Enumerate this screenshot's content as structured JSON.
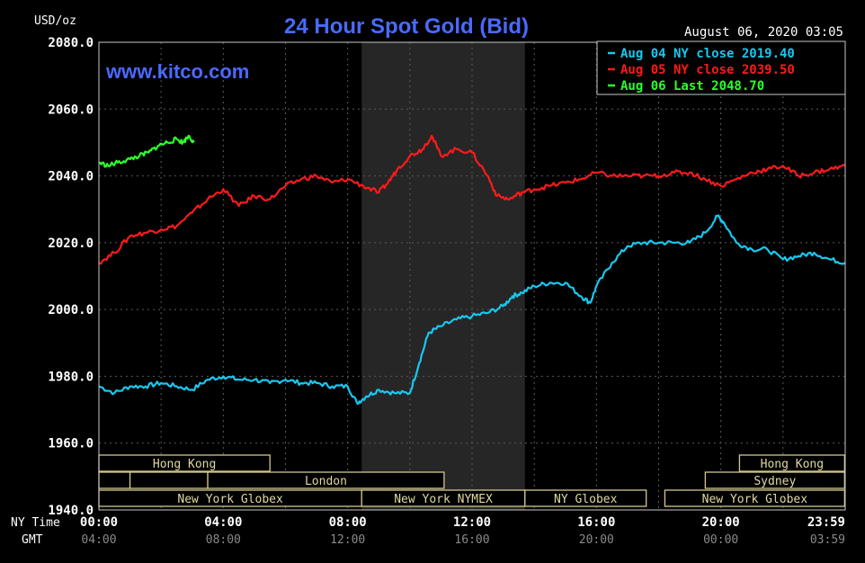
{
  "header": {
    "unit": "USD/oz",
    "title": "24 Hour Spot Gold (Bid)",
    "datetime": "August 06, 2020 03:05",
    "watermark": "www.kitco.com"
  },
  "legend": [
    {
      "label": "Aug 04 NY close 2019.40",
      "color": "#18c8f0"
    },
    {
      "label": "Aug 05 NY close 2039.50",
      "color": "#ff1a1a"
    },
    {
      "label": "Aug 06 Last 2048.70",
      "color": "#2cff2c"
    }
  ],
  "axis": {
    "ny_label": "NY Time",
    "gmt_label": "GMT",
    "ny_ticks": [
      "00:00",
      "04:00",
      "08:00",
      "12:00",
      "16:00",
      "20:00",
      "23:59"
    ],
    "gmt_ticks": [
      "04:00",
      "08:00",
      "12:00",
      "16:00",
      "20:00",
      "00:00",
      "03:59"
    ],
    "y_ticks": [
      "2080.0",
      "2060.0",
      "2040.0",
      "2020.0",
      "2000.0",
      "1980.0",
      "1960.0",
      "1940.0"
    ]
  },
  "sessions": [
    {
      "label": "Hong Kong",
      "start": 0,
      "end": 5.5,
      "row": 0
    },
    {
      "label": "Hong Kong",
      "start": 20.6,
      "end": 23.98,
      "row": 0
    },
    {
      "label": "",
      "start": 0,
      "end": 1.0,
      "row": 1
    },
    {
      "label": "",
      "start": 1.0,
      "end": 3.5,
      "row": 1
    },
    {
      "label": "London",
      "start": 3.5,
      "end": 11.1,
      "row": 1
    },
    {
      "label": "Sydney",
      "start": 19.5,
      "end": 23.98,
      "row": 1
    },
    {
      "label": "New York Globex",
      "start": 0,
      "end": 8.45,
      "row": 2
    },
    {
      "label": "New York NYMEX",
      "start": 8.45,
      "end": 13.7,
      "row": 2
    },
    {
      "label": "NY Globex",
      "start": 13.7,
      "end": 17.6,
      "row": 2
    },
    {
      "label": "New York Globex",
      "start": 18.2,
      "end": 23.98,
      "row": 2
    }
  ],
  "shaded_region": {
    "start": 8.45,
    "end": 13.7
  },
  "chart_data": {
    "type": "line",
    "title": "24 Hour Spot Gold (Bid)",
    "ylabel": "USD/oz",
    "xlabel": "NY Time",
    "ylim": [
      1940,
      2080
    ],
    "xlim": [
      0,
      24
    ],
    "grid": true,
    "legend_position": "top-right",
    "series": [
      {
        "name": "Aug 04 NY close 2019.40",
        "color": "#18c8f0",
        "x": [
          0,
          0.5,
          1,
          1.5,
          2,
          2.5,
          3,
          3.5,
          4,
          4.5,
          5,
          5.5,
          6,
          6.5,
          7,
          7.5,
          8,
          8.3,
          8.6,
          9,
          9.5,
          10,
          10.3,
          10.6,
          11,
          11.5,
          12,
          12.5,
          13,
          13.3,
          13.6,
          14,
          14.5,
          15,
          15.5,
          15.8,
          16,
          16.5,
          17,
          17.5,
          18,
          18.5,
          19,
          19.5,
          19.9,
          20.1,
          20.5,
          21,
          21.5,
          22,
          22.5,
          23,
          23.5,
          24
        ],
        "y": [
          1977,
          1975,
          1977,
          1977,
          1978,
          1977,
          1976,
          1979,
          1980,
          1979,
          1979,
          1978,
          1979,
          1978,
          1978,
          1977,
          1977,
          1972,
          1974,
          1976,
          1975,
          1975,
          1984,
          1993,
          1995,
          1997,
          1998,
          1999,
          2001,
          2004,
          2005,
          2007,
          2008,
          2008,
          2004,
          2002,
          2007,
          2014,
          2019,
          2020,
          2020,
          2020,
          2020,
          2023,
          2028,
          2026,
          2020,
          2018,
          2018,
          2015,
          2016,
          2017,
          2015,
          2014
        ]
      },
      {
        "name": "Aug 05 NY close 2039.50",
        "color": "#ff1a1a",
        "x": [
          0,
          0.5,
          1,
          1.5,
          2,
          2.5,
          3,
          3.5,
          4,
          4.5,
          5,
          5.5,
          6,
          6.5,
          7,
          7.5,
          8,
          8.5,
          9,
          9.3,
          9.6,
          10,
          10.4,
          10.7,
          11,
          11.5,
          12,
          12.5,
          12.8,
          13.2,
          13.6,
          14,
          14.5,
          15,
          15.5,
          16,
          16.5,
          17,
          17.5,
          18,
          18.5,
          19,
          19.5,
          20,
          20.5,
          21,
          21.5,
          22,
          22.5,
          23,
          23.5,
          24
        ],
        "y": [
          2014,
          2017,
          2022,
          2023,
          2024,
          2025,
          2029,
          2033,
          2036,
          2031,
          2034,
          2033,
          2037,
          2039,
          2040,
          2038,
          2039,
          2037,
          2035,
          2038,
          2042,
          2046,
          2048,
          2052,
          2046,
          2048,
          2047,
          2040,
          2034,
          2033,
          2035,
          2036,
          2037,
          2038,
          2039,
          2041,
          2040,
          2040,
          2040,
          2040,
          2041,
          2041,
          2039,
          2037,
          2039,
          2041,
          2042,
          2043,
          2040,
          2041,
          2042,
          2043
        ]
      },
      {
        "name": "Aug 06 Last 2048.70",
        "color": "#2cff2c",
        "x": [
          0,
          0.3,
          0.6,
          1.0,
          1.3,
          1.6,
          1.9,
          2.2,
          2.5,
          2.7,
          2.9,
          3.05
        ],
        "y": [
          2044,
          2043,
          2044,
          2045,
          2046,
          2047,
          2049,
          2050,
          2051,
          2050,
          2052,
          2050
        ]
      }
    ]
  }
}
